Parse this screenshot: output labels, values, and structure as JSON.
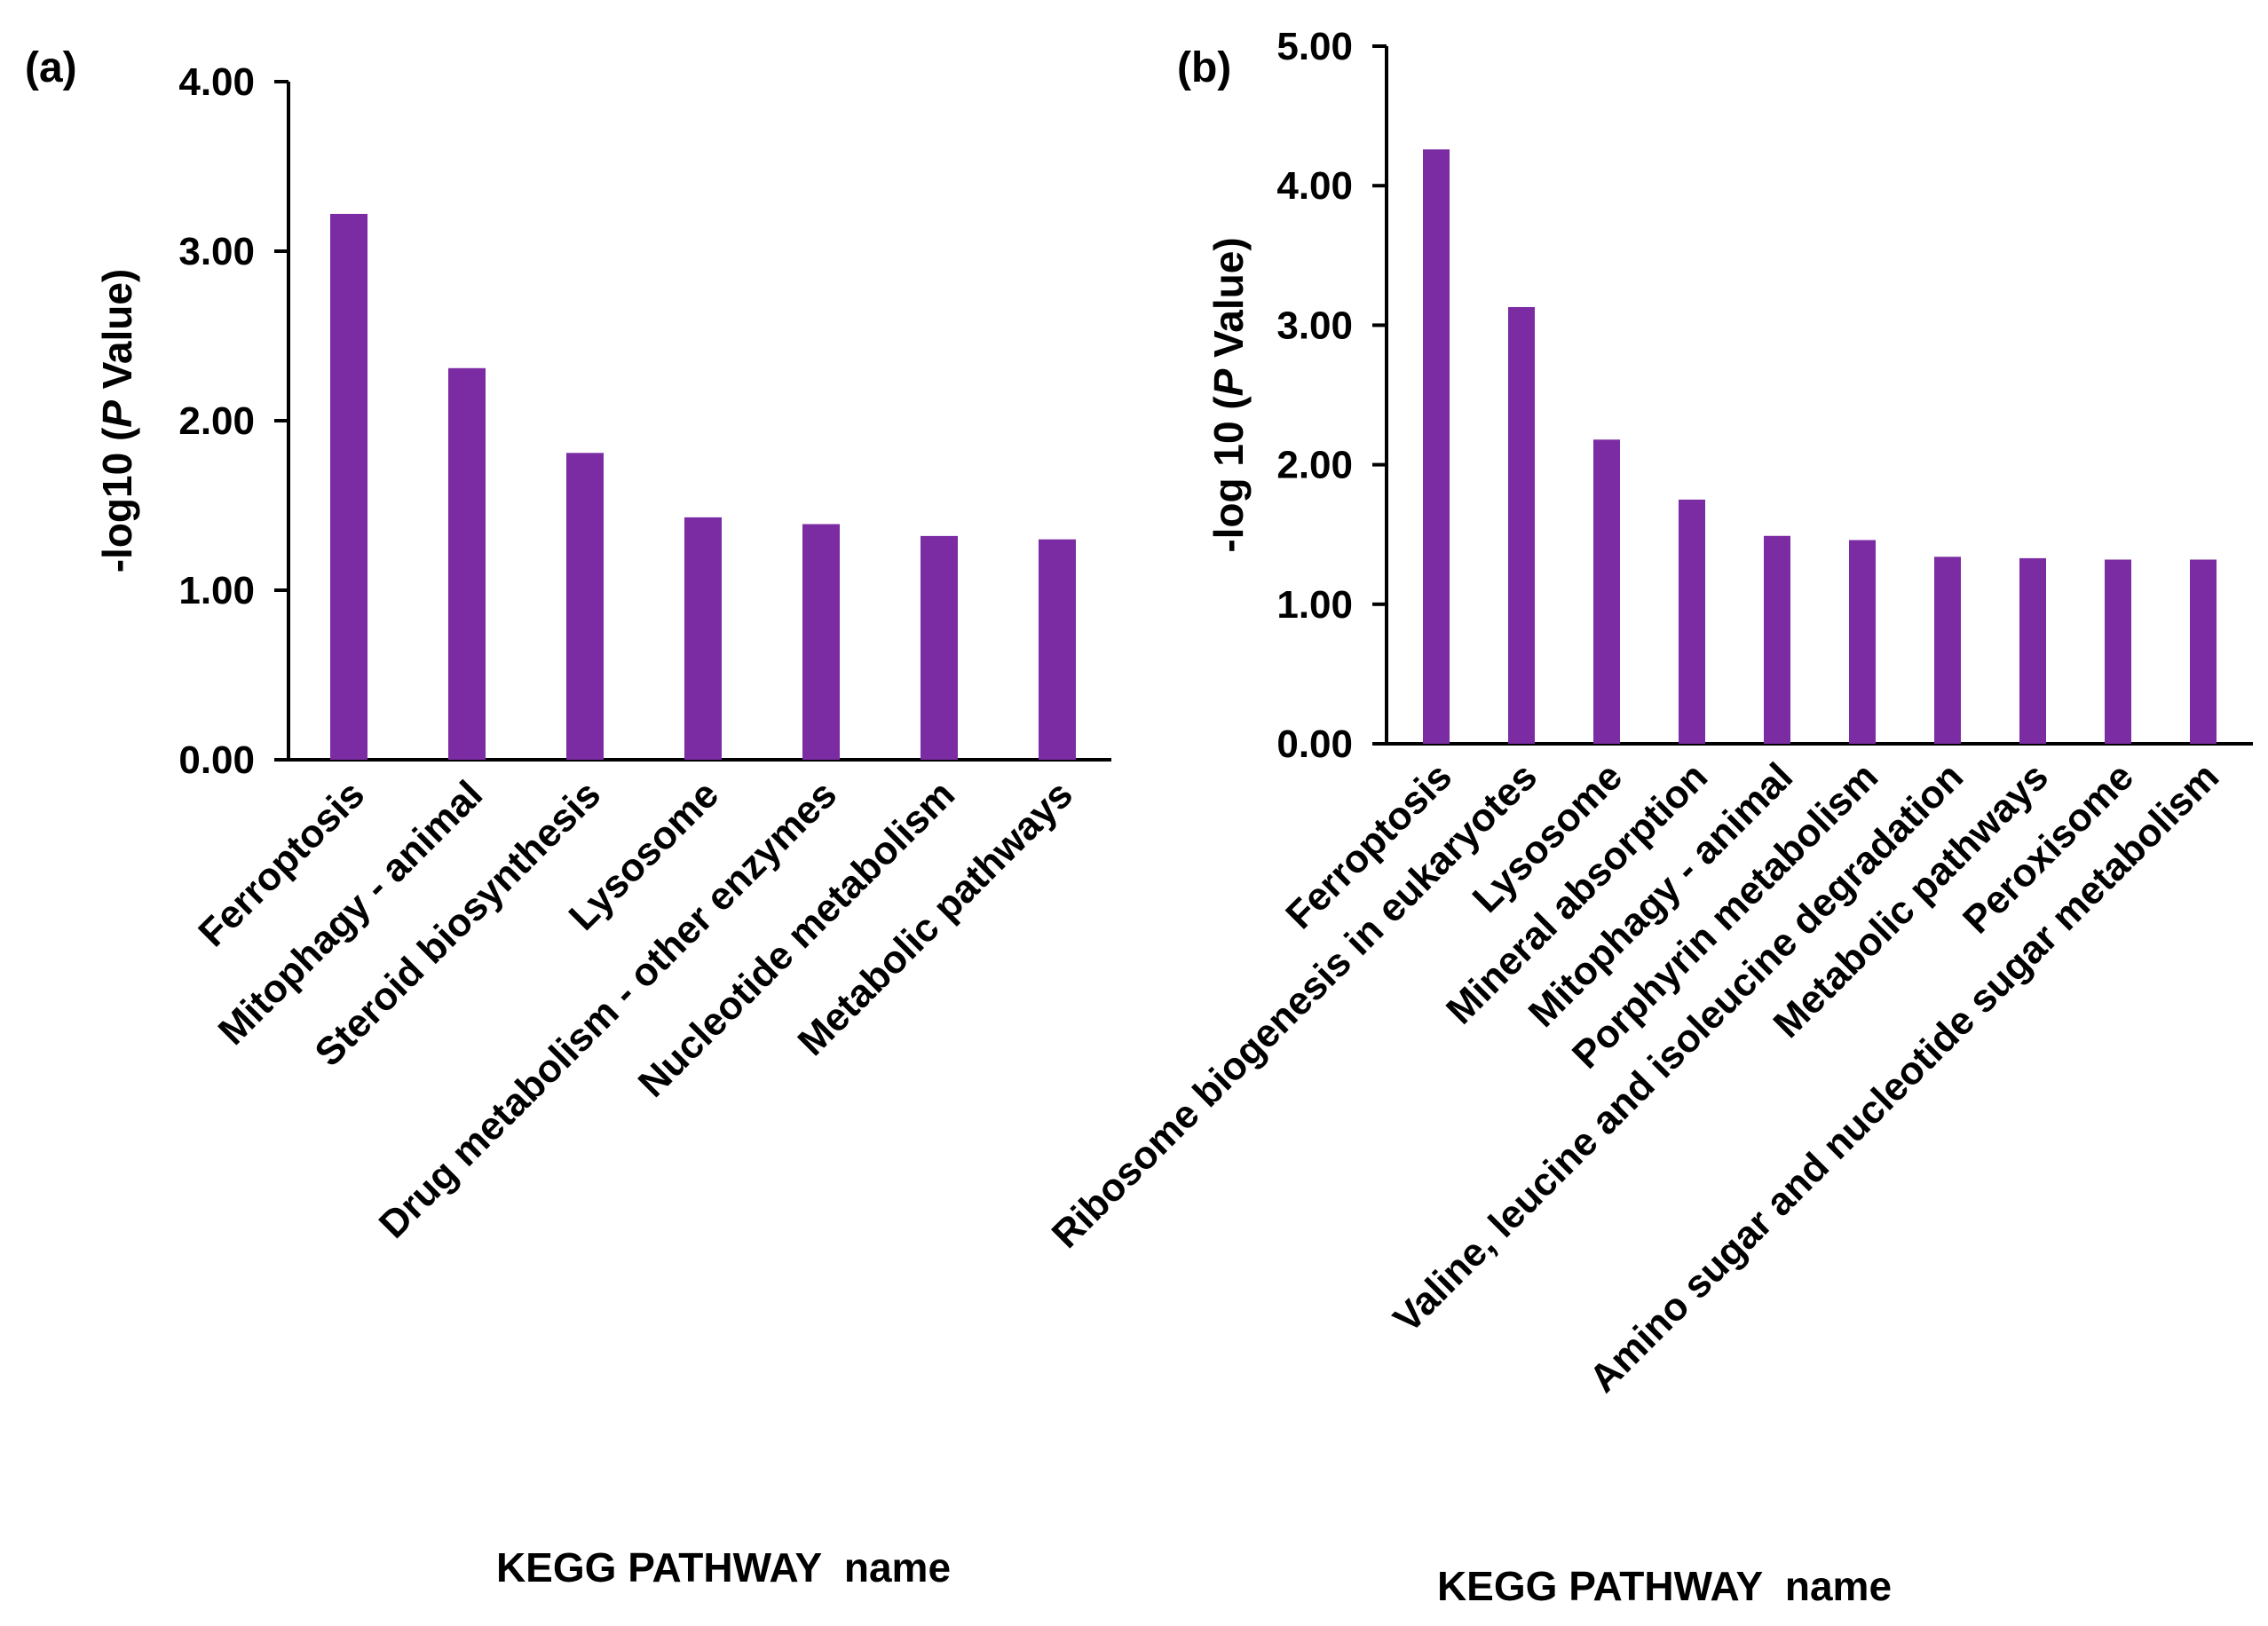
{
  "chart_data": [
    {
      "type": "bar",
      "panel_label": "(a)",
      "categories": [
        "Ferroptosis",
        "Mitophagy - animal",
        "Steroid biosynthesis",
        "Lysosome",
        "Drug metabolism - other enzymes",
        "Nucleotide metabolism",
        "Metabolic pathways"
      ],
      "values": [
        3.22,
        2.31,
        1.81,
        1.43,
        1.39,
        1.32,
        1.3
      ],
      "ylabel_prefix": "-log10 (",
      "ylabel_italic": "P",
      "ylabel_suffix": " Value)",
      "xlabel": "KEGG PATHWAY  name",
      "ylim": [
        0,
        4
      ],
      "yticks": [
        0,
        1,
        2,
        3,
        4
      ],
      "ytick_labels": [
        "0.00",
        "1.00",
        "2.00",
        "3.00",
        "4.00"
      ],
      "bar_color": "#7B2CA3",
      "grid": false
    },
    {
      "type": "bar",
      "panel_label": "(b)",
      "categories": [
        "Ferroptosis",
        "Ribosome biogenesis in eukaryotes",
        "Lysosome",
        "Mineral absorption",
        "Mitophagy - animal",
        "Porphyrin metabolism",
        "Valine, leucine and isoleucine degradation",
        "Metabolic pathways",
        "Peroxisome",
        "Amino sugar and nucleotide sugar metabolism"
      ],
      "values": [
        4.26,
        3.13,
        2.18,
        1.75,
        1.49,
        1.46,
        1.34,
        1.33,
        1.32,
        1.32
      ],
      "ylabel_prefix": "-log 10 (",
      "ylabel_italic": "P",
      "ylabel_suffix": " Value)",
      "xlabel": "KEGG PATHWAY  name",
      "ylim": [
        0,
        5
      ],
      "yticks": [
        0,
        1,
        2,
        3,
        4,
        5
      ],
      "ytick_labels": [
        "0.00",
        "1.00",
        "2.00",
        "3.00",
        "4.00",
        "5.00"
      ],
      "bar_color": "#7B2CA3",
      "grid": false
    }
  ]
}
